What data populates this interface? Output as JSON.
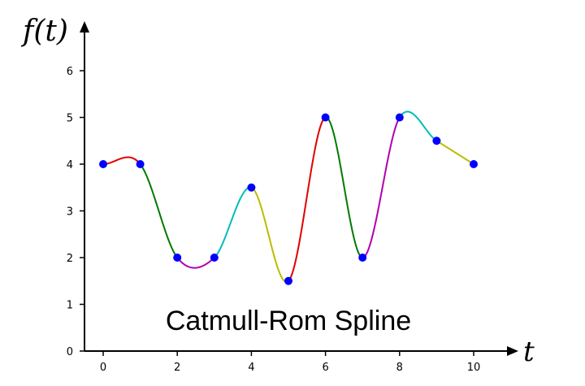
{
  "chart_data": {
    "type": "line",
    "title": "Catmull-Rom Spline",
    "xlabel": "t",
    "ylabel": "f(t)",
    "xlim": [
      0,
      10
    ],
    "ylim": [
      0,
      6.7
    ],
    "x_ticks": [
      "0",
      "2",
      "4",
      "6",
      "8",
      "10"
    ],
    "y_ticks": [
      "0",
      "1",
      "2",
      "3",
      "4",
      "5",
      "6"
    ],
    "grid": false,
    "legend": "none",
    "points": {
      "x": [
        0,
        1,
        2,
        3,
        4,
        5,
        6,
        7,
        8,
        9,
        10
      ],
      "y": [
        4,
        4,
        2,
        2,
        3.5,
        1.5,
        5,
        2,
        5,
        4.5,
        4
      ]
    },
    "point_color": "#0000ff",
    "segment_colors": [
      "#e00000",
      "#007a00",
      "#b000b0",
      "#00bcbc",
      "#bcbc00"
    ]
  }
}
